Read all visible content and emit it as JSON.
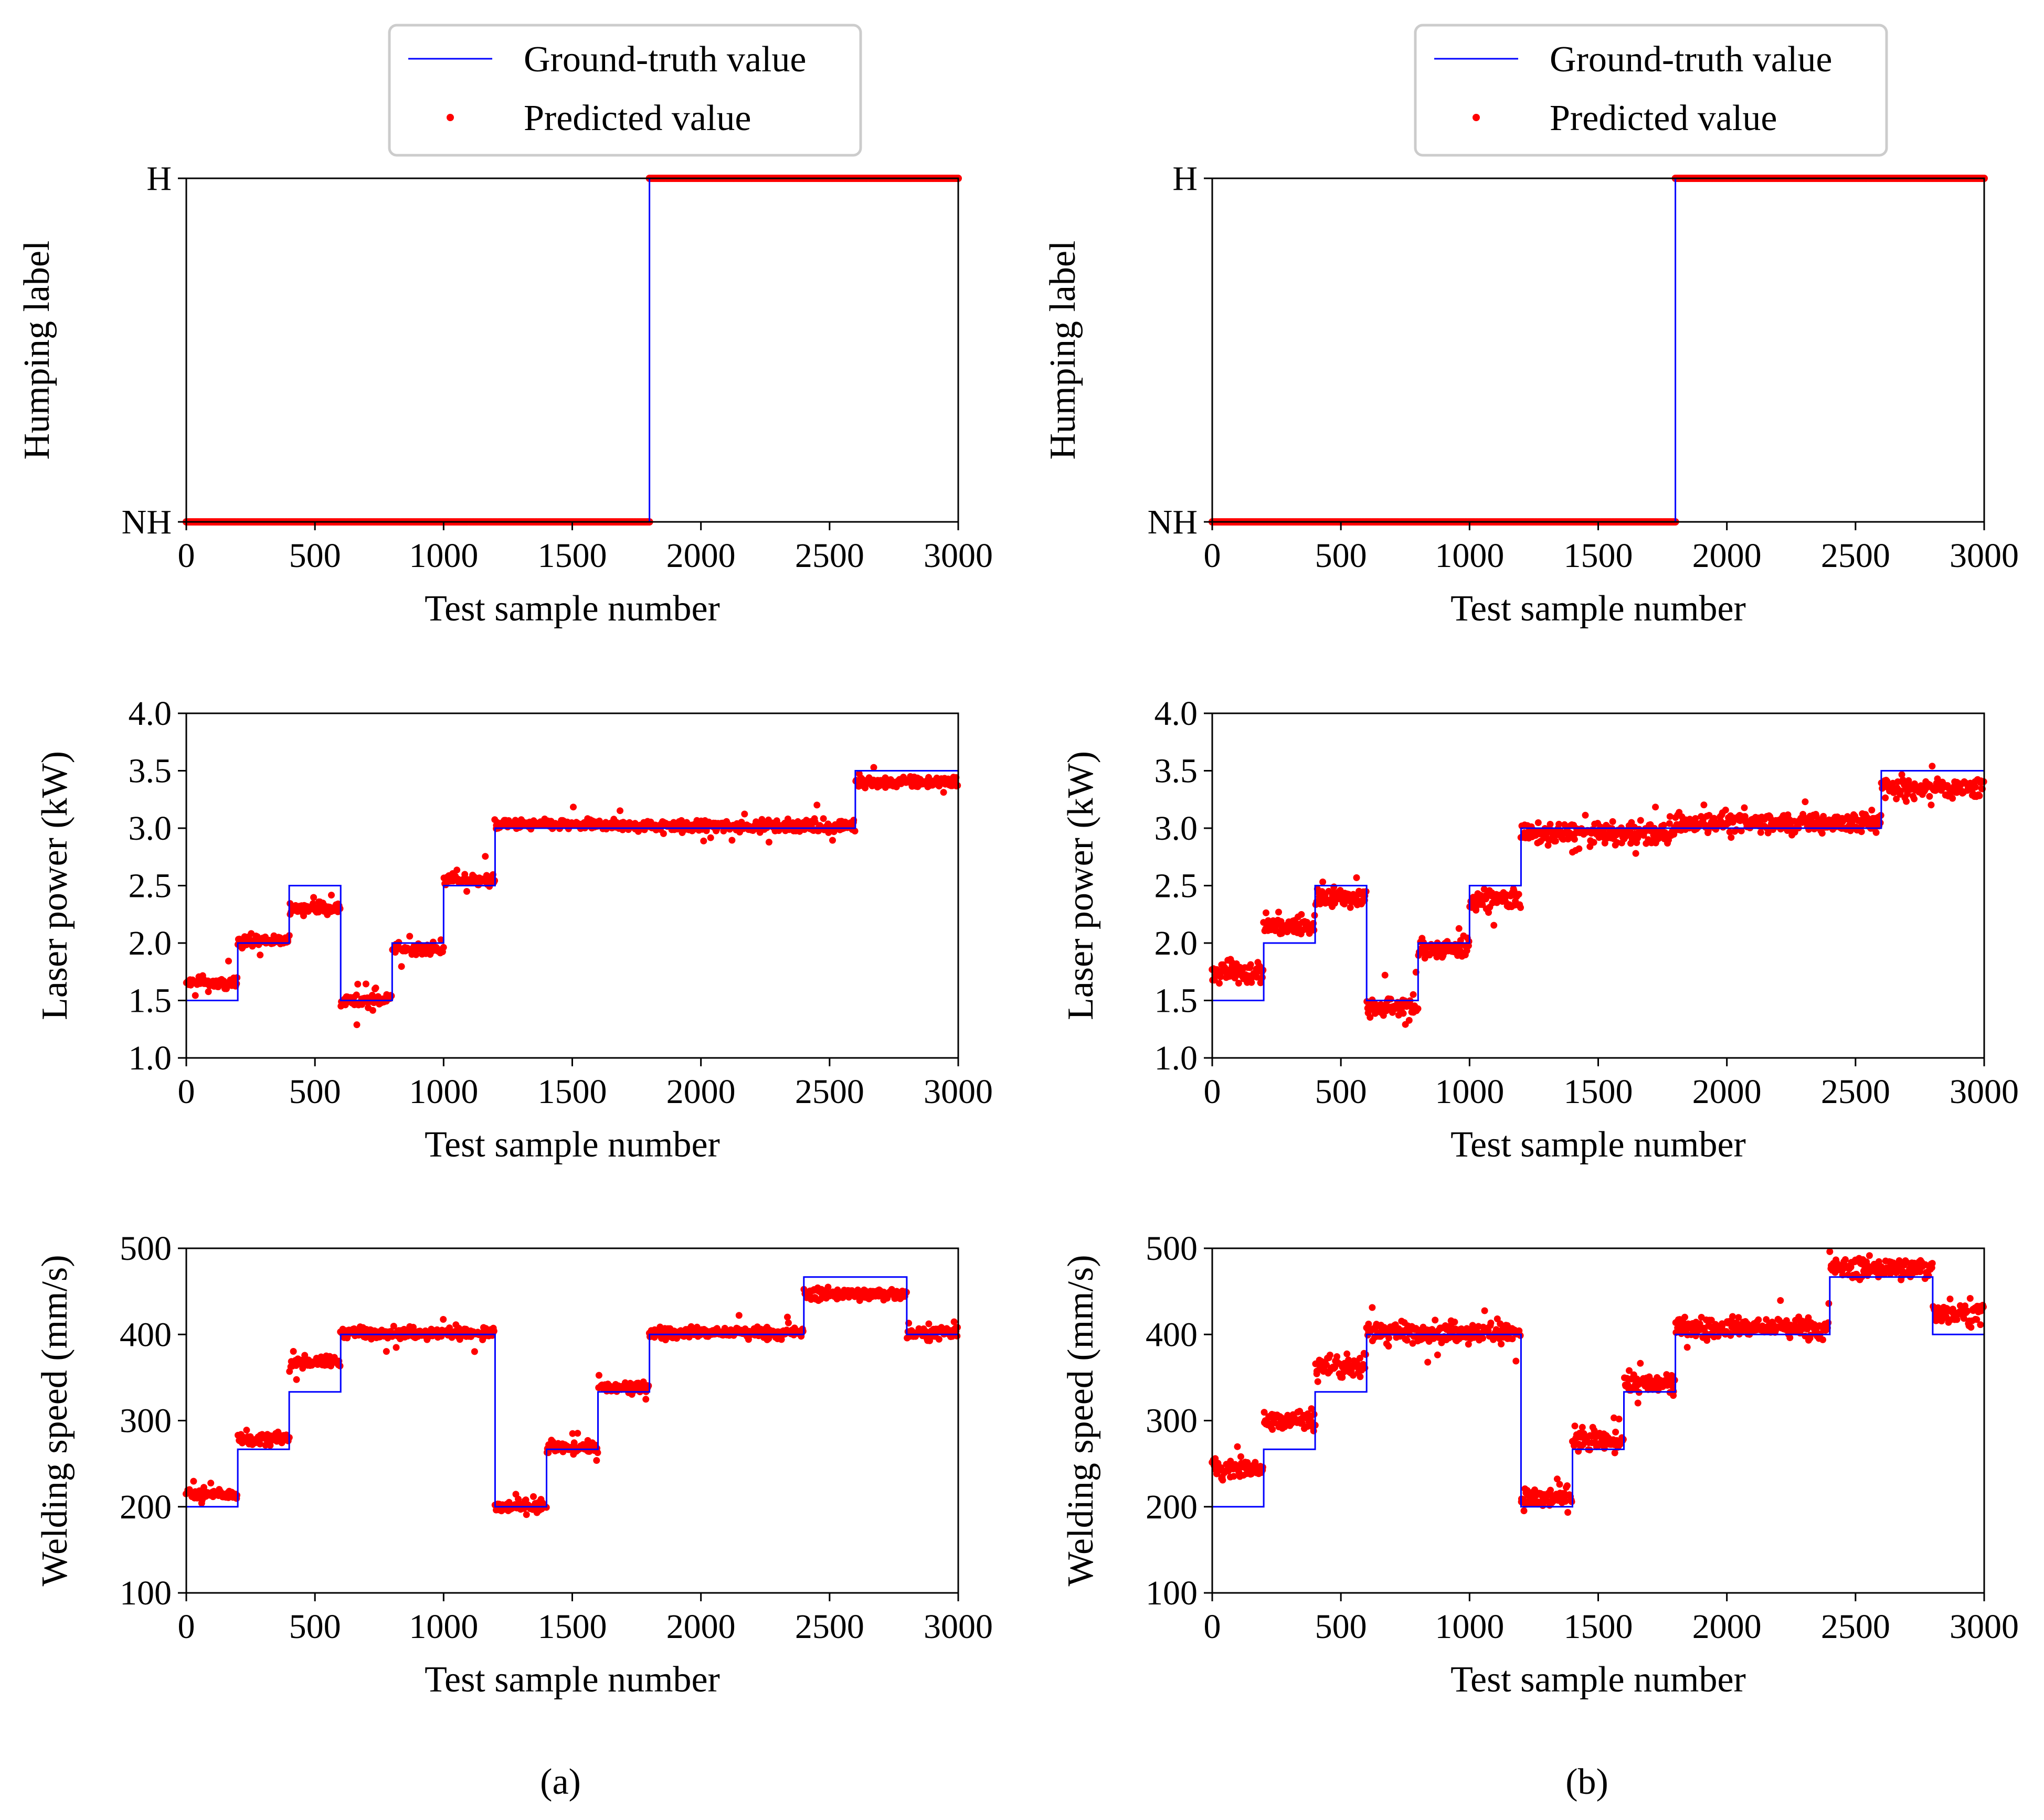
{
  "legend": {
    "ground_truth_label": "Ground-truth value",
    "predicted_label": "Predicted value",
    "ground_truth_color": "#0000ff",
    "predicted_color": "#ff0000"
  },
  "captions": [
    "(a)",
    "(b)"
  ],
  "chart_data": [
    {
      "id": "a-humping",
      "panel": "a",
      "type": "line+scatter",
      "xlabel": "Test sample number",
      "ylabel": "Humping label",
      "xlim": [
        0,
        3000
      ],
      "ylim": [
        0,
        1
      ],
      "xticks": [
        0,
        500,
        1000,
        1500,
        2000,
        2500,
        3000
      ],
      "yticks": [
        0,
        1
      ],
      "ytick_labels": [
        "NH",
        "H"
      ],
      "ground_truth_steps": [
        [
          0,
          1800,
          0
        ],
        [
          1800,
          3000,
          1
        ]
      ],
      "predicted": {
        "noise": 0,
        "outliers": 0
      }
    },
    {
      "id": "a-power",
      "panel": "a",
      "type": "line+scatter",
      "xlabel": "Test sample number",
      "ylabel": "Laser power (kW)",
      "xlim": [
        0,
        3000
      ],
      "ylim": [
        1.0,
        4.0
      ],
      "xticks": [
        0,
        500,
        1000,
        1500,
        2000,
        2500,
        3000
      ],
      "yticks": [
        1.0,
        1.5,
        2.0,
        2.5,
        3.0,
        3.5,
        4.0
      ],
      "ytick_labels": [
        "1.0",
        "1.5",
        "2.0",
        "2.5",
        "3.0",
        "3.5",
        "4.0"
      ],
      "ground_truth_steps": [
        [
          0,
          200,
          1.5
        ],
        [
          200,
          400,
          2.0
        ],
        [
          400,
          600,
          2.5
        ],
        [
          600,
          800,
          1.5
        ],
        [
          800,
          1000,
          2.0
        ],
        [
          1000,
          1200,
          2.5
        ],
        [
          1200,
          2600,
          3.0
        ],
        [
          2600,
          3000,
          3.5
        ]
      ],
      "predicted_offsets": [
        [
          0,
          200,
          0.15
        ],
        [
          200,
          400,
          0.02
        ],
        [
          400,
          600,
          -0.2
        ],
        [
          600,
          800,
          0.0
        ],
        [
          800,
          1000,
          -0.05
        ],
        [
          1000,
          1200,
          0.05
        ],
        [
          1200,
          1800,
          0.03
        ],
        [
          1800,
          2600,
          0.02
        ],
        [
          2600,
          3000,
          -0.1
        ]
      ],
      "predicted": {
        "noise": 0.07,
        "outliers": 0.25
      }
    },
    {
      "id": "a-speed",
      "panel": "a",
      "type": "line+scatter",
      "xlabel": "Test sample number",
      "ylabel": "Welding speed (mm/s)",
      "xlim": [
        0,
        3000
      ],
      "ylim": [
        100,
        500
      ],
      "xticks": [
        0,
        500,
        1000,
        1500,
        2000,
        2500,
        3000
      ],
      "yticks": [
        100,
        200,
        300,
        400,
        500
      ],
      "ytick_labels": [
        "100",
        "200",
        "300",
        "400",
        "500"
      ],
      "ground_truth_steps": [
        [
          0,
          200,
          200
        ],
        [
          200,
          400,
          266.7
        ],
        [
          400,
          600,
          333.3
        ],
        [
          600,
          1200,
          400
        ],
        [
          1200,
          1400,
          200
        ],
        [
          1400,
          1600,
          266.7
        ],
        [
          1600,
          1800,
          333.3
        ],
        [
          1800,
          2400,
          400
        ],
        [
          2400,
          2800,
          466.7
        ],
        [
          2800,
          3000,
          400
        ]
      ],
      "predicted_offsets": [
        [
          0,
          200,
          15
        ],
        [
          200,
          400,
          12
        ],
        [
          400,
          600,
          35
        ],
        [
          600,
          1200,
          2
        ],
        [
          1200,
          1400,
          0
        ],
        [
          1400,
          1600,
          2
        ],
        [
          1600,
          1800,
          5
        ],
        [
          1800,
          2400,
          2
        ],
        [
          2400,
          2800,
          -20
        ],
        [
          2800,
          3000,
          2
        ]
      ],
      "predicted": {
        "noise": 10,
        "outliers": 30
      }
    },
    {
      "id": "b-humping",
      "panel": "b",
      "type": "line+scatter",
      "xlabel": "Test sample number",
      "ylabel": "Humping label",
      "xlim": [
        0,
        3000
      ],
      "ylim": [
        0,
        1
      ],
      "xticks": [
        0,
        500,
        1000,
        1500,
        2000,
        2500,
        3000
      ],
      "yticks": [
        0,
        1
      ],
      "ytick_labels": [
        "NH",
        "H"
      ],
      "ground_truth_steps": [
        [
          0,
          1800,
          0
        ],
        [
          1800,
          3000,
          1
        ]
      ],
      "predicted": {
        "noise": 0,
        "outliers": 0
      }
    },
    {
      "id": "b-power",
      "panel": "b",
      "type": "line+scatter",
      "xlabel": "Test sample number",
      "ylabel": "Laser power (kW)",
      "xlim": [
        0,
        3000
      ],
      "ylim": [
        1.0,
        4.0
      ],
      "xticks": [
        0,
        500,
        1000,
        1500,
        2000,
        2500,
        3000
      ],
      "yticks": [
        1.0,
        1.5,
        2.0,
        2.5,
        3.0,
        3.5,
        4.0
      ],
      "ytick_labels": [
        "1.0",
        "1.5",
        "2.0",
        "2.5",
        "3.0",
        "3.5",
        "4.0"
      ],
      "ground_truth_steps": [
        [
          0,
          200,
          1.5
        ],
        [
          200,
          400,
          2.0
        ],
        [
          400,
          600,
          2.5
        ],
        [
          600,
          800,
          1.5
        ],
        [
          800,
          1000,
          2.0
        ],
        [
          1000,
          1200,
          2.5
        ],
        [
          1200,
          2600,
          3.0
        ],
        [
          2600,
          3000,
          3.5
        ]
      ],
      "predicted_offsets": [
        [
          0,
          200,
          0.25
        ],
        [
          200,
          400,
          0.15
        ],
        [
          400,
          600,
          -0.1
        ],
        [
          600,
          800,
          -0.05
        ],
        [
          800,
          1000,
          -0.05
        ],
        [
          1000,
          1200,
          -0.12
        ],
        [
          1200,
          1800,
          -0.05
        ],
        [
          1800,
          2600,
          0.05
        ],
        [
          2600,
          3000,
          -0.15
        ]
      ],
      "predicted": {
        "noise": 0.13,
        "outliers": 0.3
      }
    },
    {
      "id": "b-speed",
      "panel": "b",
      "type": "line+scatter",
      "xlabel": "Test sample number",
      "ylabel": "Welding speed (mm/s)",
      "xlim": [
        0,
        3000
      ],
      "ylim": [
        100,
        500
      ],
      "xticks": [
        0,
        500,
        1000,
        1500,
        2000,
        2500,
        3000
      ],
      "yticks": [
        100,
        200,
        300,
        400,
        500
      ],
      "ytick_labels": [
        "100",
        "200",
        "300",
        "400",
        "500"
      ],
      "ground_truth_steps": [
        [
          0,
          200,
          200
        ],
        [
          200,
          400,
          266.7
        ],
        [
          400,
          600,
          333.3
        ],
        [
          600,
          1200,
          400
        ],
        [
          1200,
          1400,
          200
        ],
        [
          1400,
          1600,
          266.7
        ],
        [
          1600,
          1800,
          333.3
        ],
        [
          1800,
          2400,
          400
        ],
        [
          2400,
          2800,
          466.7
        ],
        [
          2800,
          3000,
          400
        ]
      ],
      "predicted_offsets": [
        [
          0,
          200,
          45
        ],
        [
          200,
          400,
          35
        ],
        [
          400,
          600,
          30
        ],
        [
          600,
          1200,
          3
        ],
        [
          1200,
          1400,
          10
        ],
        [
          1400,
          1600,
          10
        ],
        [
          1600,
          1800,
          10
        ],
        [
          1800,
          2400,
          8
        ],
        [
          2400,
          2800,
          10
        ],
        [
          2800,
          3000,
          25
        ]
      ],
      "predicted": {
        "noise": 18,
        "outliers": 45
      }
    }
  ]
}
